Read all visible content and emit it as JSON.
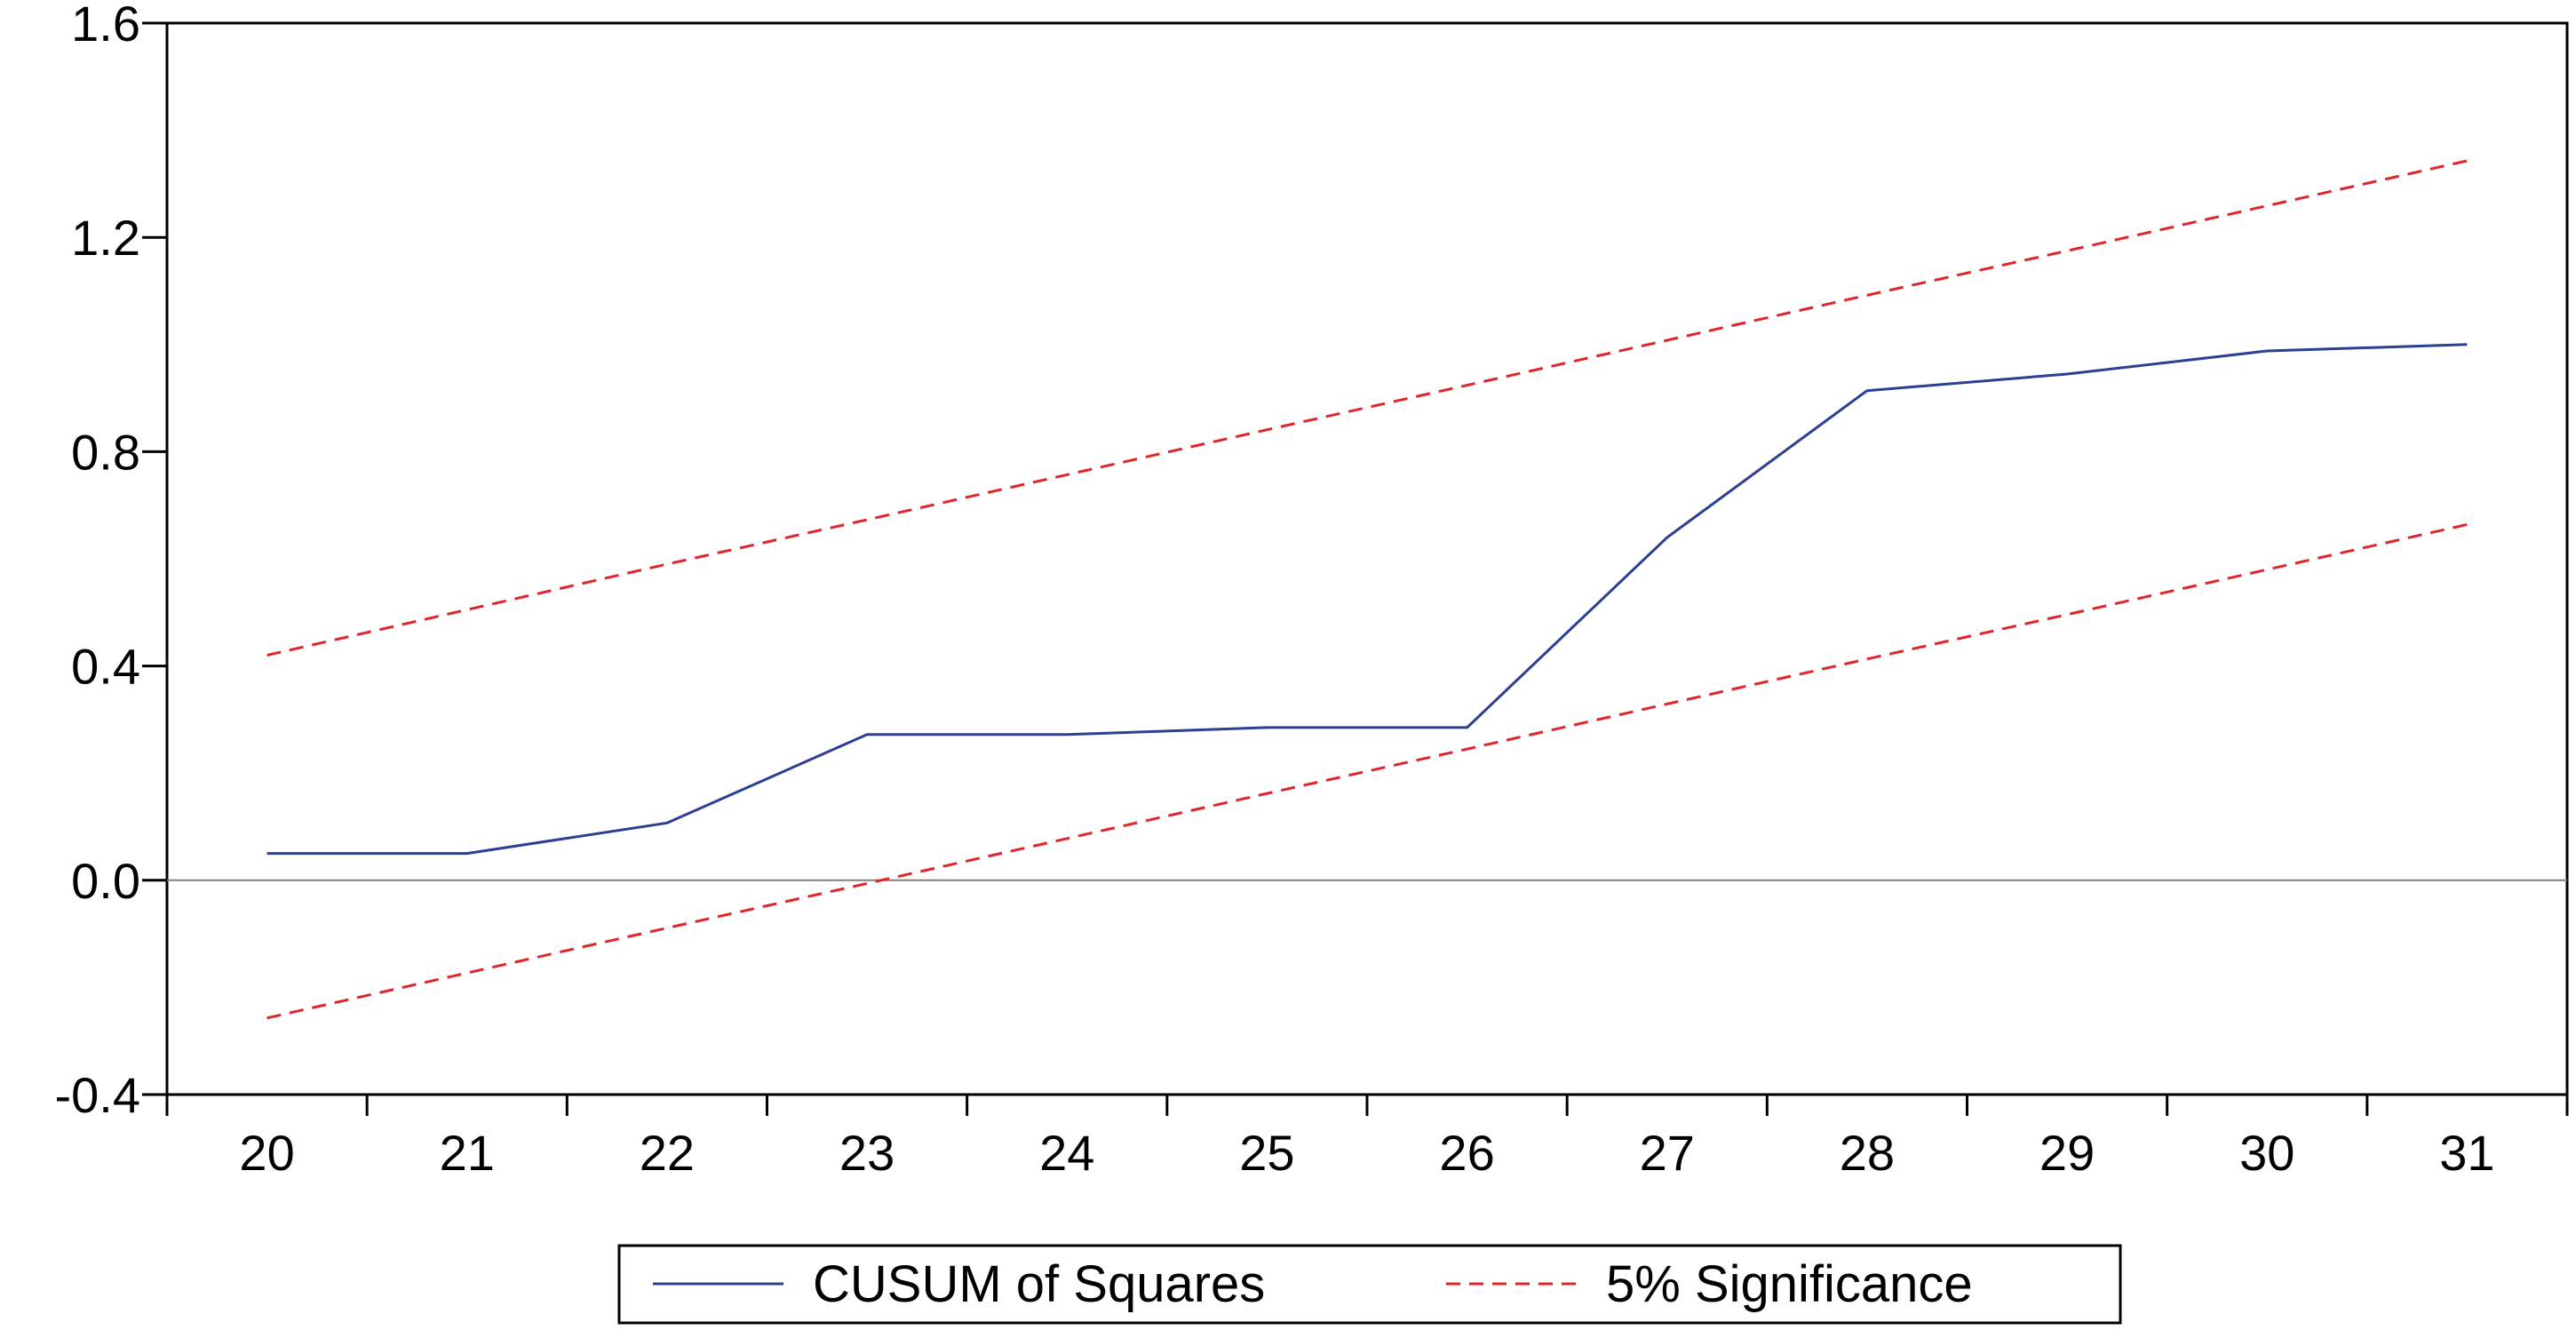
{
  "chart_data": {
    "type": "line",
    "title": "",
    "xlabel": "",
    "ylabel": "",
    "x": [
      20,
      21,
      22,
      23,
      24,
      25,
      26,
      27,
      28,
      29,
      30,
      31
    ],
    "xlim": [
      19.5,
      31.5
    ],
    "ylim": [
      -0.4,
      1.6
    ],
    "yticks": [
      -0.4,
      0.0,
      0.4,
      0.8,
      1.2,
      1.6
    ],
    "ytick_labels": [
      "-0.4",
      "0.0",
      "0.4",
      "0.8",
      "1.2",
      "1.6"
    ],
    "xtick_labels": [
      "20",
      "21",
      "22",
      "23",
      "24",
      "25",
      "26",
      "27",
      "28",
      "29",
      "30",
      "31"
    ],
    "grid": false,
    "zero_line": true,
    "legend_position": "bottom-center",
    "series": [
      {
        "name": "CUSUM of Squares",
        "color": "#2b3f94",
        "style": "solid",
        "values": [
          0.05,
          0.05,
          0.107,
          0.272,
          0.272,
          0.285,
          0.285,
          0.64,
          0.914,
          0.945,
          0.988,
          1.0
        ]
      },
      {
        "name": "5% Significance",
        "color": "#e0262b",
        "style": "dashed",
        "values": [
          0.42,
          0.505,
          0.59,
          0.673,
          0.757,
          0.841,
          0.924,
          1.008,
          1.092,
          1.175,
          1.259,
          1.343
        ]
      },
      {
        "name": "5% Significance (lower)",
        "legend": false,
        "color": "#e0262b",
        "style": "dashed",
        "values": [
          -0.257,
          -0.173,
          -0.089,
          -0.006,
          0.078,
          0.162,
          0.245,
          0.329,
          0.413,
          0.496,
          0.58,
          0.664
        ]
      }
    ]
  }
}
